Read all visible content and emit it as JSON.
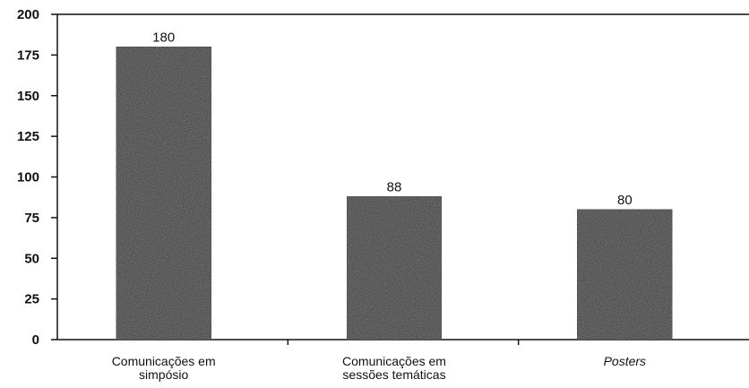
{
  "chart_data": {
    "type": "bar",
    "categories": [
      [
        "Comunicações em",
        "simpósio"
      ],
      [
        "Comunicações em",
        "sessões temáticas"
      ],
      [
        "Posters"
      ]
    ],
    "category_italic": [
      false,
      false,
      true
    ],
    "values": [
      180,
      88,
      80
    ],
    "data_labels": [
      "180",
      "88",
      "80"
    ],
    "y_ticks": [
      0,
      25,
      50,
      75,
      100,
      125,
      150,
      175,
      200
    ],
    "ylim": [
      0,
      200
    ],
    "grid": false,
    "legend": "none",
    "bar_color": "#2a2a2a",
    "axis_color": "#111111"
  }
}
